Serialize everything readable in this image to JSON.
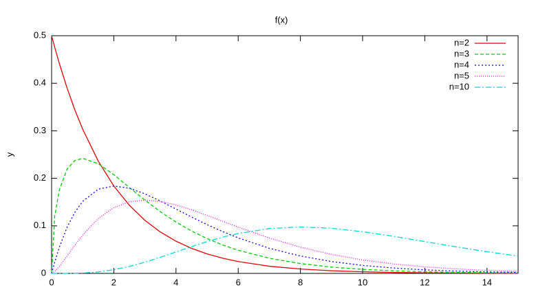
{
  "chart_data": {
    "type": "line",
    "title": "f(x)",
    "y_label": "y",
    "x": [
      0,
      0.1,
      0.25,
      0.5,
      0.75,
      1,
      1.5,
      2,
      2.5,
      3,
      3.5,
      4,
      4.5,
      5,
      5.5,
      6,
      7,
      8,
      9,
      10,
      11,
      12,
      13,
      14,
      15
    ],
    "series": [
      {
        "name": "n=2",
        "color": "#e00000",
        "dash": "none",
        "values": [
          0.5,
          0.4756,
          0.4413,
          0.3894,
          0.3436,
          0.3033,
          0.2362,
          0.1839,
          0.1433,
          0.1116,
          0.0869,
          0.0677,
          0.0527,
          0.041,
          0.032,
          0.0249,
          0.0151,
          0.0092,
          0.0056,
          0.0034,
          0.002,
          0.0012,
          0.0008,
          0.0005,
          0.0003
        ]
      },
      {
        "name": "n=3",
        "color": "#00cc00",
        "dash": "5,3",
        "values": [
          0,
          0.12,
          0.176,
          0.2197,
          0.2375,
          0.242,
          0.2308,
          0.2076,
          0.1807,
          0.1542,
          0.1297,
          0.108,
          0.0892,
          0.0732,
          0.0598,
          0.0487,
          0.0319,
          0.0207,
          0.0133,
          0.0085,
          0.0054,
          0.0034,
          0.0022,
          0.0014,
          0.0009
        ]
      },
      {
        "name": "n=4",
        "color": "#0000dd",
        "dash": "2,3",
        "values": [
          0,
          0.0238,
          0.0552,
          0.0974,
          0.1289,
          0.1516,
          0.1771,
          0.1839,
          0.1791,
          0.1674,
          0.1521,
          0.1353,
          0.1186,
          0.1026,
          0.0879,
          0.0747,
          0.0528,
          0.0366,
          0.025,
          0.0168,
          0.0112,
          0.0074,
          0.0049,
          0.0032,
          0.0021
        ]
      },
      {
        "name": "n=5",
        "color": "#ee00ee",
        "dash": "1,2",
        "values": [
          0,
          0.004,
          0.0147,
          0.0366,
          0.0594,
          0.0807,
          0.1154,
          0.1384,
          0.1506,
          0.1542,
          0.1513,
          0.144,
          0.1338,
          0.122,
          0.1097,
          0.0973,
          0.0744,
          0.0551,
          0.0399,
          0.0283,
          0.0198,
          0.0137,
          0.0094,
          0.0064,
          0.0043
        ]
      },
      {
        "name": "n=10",
        "color": "#00d8d8",
        "dash": "8,3,2,3",
        "values": [
          0,
          0,
          0,
          0.0001,
          0.0003,
          0.0008,
          0.0031,
          0.0077,
          0.0146,
          0.0235,
          0.034,
          0.0451,
          0.0563,
          0.0668,
          0.0762,
          0.084,
          0.0944,
          0.0977,
          0.0949,
          0.0877,
          0.0779,
          0.0669,
          0.0559,
          0.0456,
          0.0365
        ]
      }
    ],
    "xlim": [
      0,
      15
    ],
    "xticks": [
      0,
      2,
      4,
      6,
      8,
      10,
      12,
      14
    ],
    "ylim": [
      0,
      0.5
    ],
    "yticks": [
      0,
      0.1,
      0.2,
      0.3,
      0.4,
      0.5
    ],
    "legend": "top-right"
  }
}
